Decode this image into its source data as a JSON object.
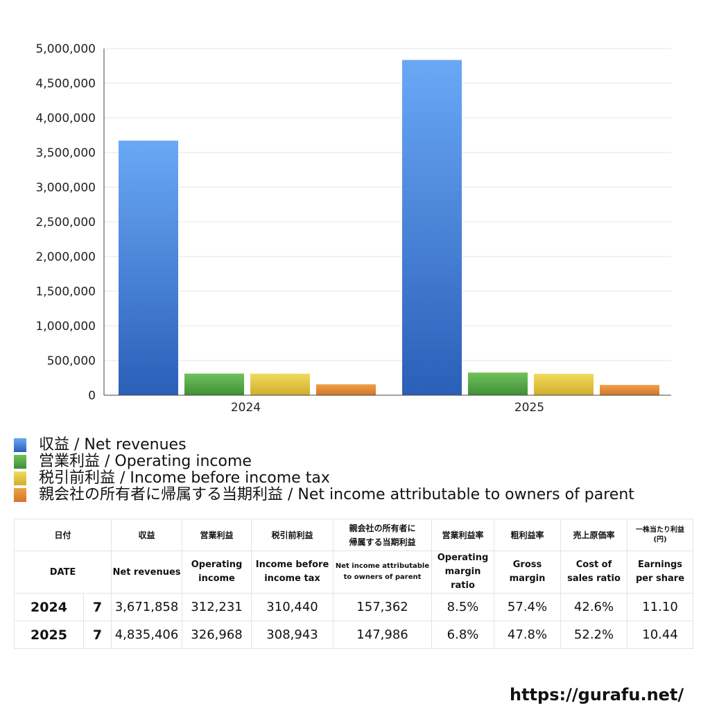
{
  "chart_data": {
    "type": "bar",
    "categories": [
      "2024",
      "2025"
    ],
    "series": [
      {
        "name": "収益 / Net revenues",
        "values": [
          3671858,
          4835406
        ]
      },
      {
        "name": "営業利益 / Operating income",
        "values": [
          312231,
          326968
        ]
      },
      {
        "name": "税引前利益 / Income before income tax",
        "values": [
          310440,
          308943
        ]
      },
      {
        "name": "親会社の所有者に帰属する当期利益 / Net income attributable to owners of parent",
        "values": [
          157362,
          147986
        ]
      }
    ],
    "ylim": [
      0,
      5000000
    ],
    "yticks": [
      0,
      500000,
      1000000,
      1500000,
      2000000,
      2500000,
      3000000,
      3500000,
      4000000,
      4500000,
      5000000
    ],
    "ytick_labels": [
      "0",
      "500,000",
      "1,000,000",
      "1,500,000",
      "2,000,000",
      "2,500,000",
      "3,000,000",
      "3,500,000",
      "4,000,000",
      "4,500,000",
      "5,000,000"
    ],
    "grid": true,
    "legend_position": "bottom-left",
    "title": "",
    "xlabel": "",
    "ylabel": ""
  },
  "colors": {
    "series": [
      {
        "light": "#6aa8f6",
        "dark": "#2b5fb8"
      },
      {
        "light": "#72c15d",
        "dark": "#3f8f37"
      },
      {
        "light": "#f0db5c",
        "dark": "#d0ae2c"
      },
      {
        "light": "#f0a048",
        "dark": "#d4752a"
      }
    ],
    "grid": "#e6e6e6",
    "axis": "#444444"
  },
  "legend": {
    "items": [
      "収益 / Net revenues",
      "営業利益 / Operating income",
      "税引前利益 / Income before income tax",
      "親会社の所有者に帰属する当期利益 / Net income attributable to owners of parent"
    ]
  },
  "table": {
    "header_jp": {
      "date": "日付",
      "revenue": "収益",
      "operating": "営業利益",
      "pretax": "税引前利益",
      "net_line1": "親会社の所有者に",
      "net_line2": "帰属する当期利益",
      "op_margin": "営業利益率",
      "gross_margin": "粗利益率",
      "cost_ratio": "売上原価率",
      "eps_line1": "一株当たり利益",
      "eps_line2": "(円)"
    },
    "header_en": {
      "date": "DATE",
      "revenue": "Net revenues",
      "operating_line1": "Operating",
      "operating_line2": "income",
      "pretax_line1": "Income before",
      "pretax_line2": "income tax",
      "net_line1": "Net income attributable",
      "net_line2": "to owners of parent",
      "op_margin_line1": "Operating",
      "op_margin_line2": "margin",
      "op_margin_line3": "ratio",
      "gross_line1": "Gross",
      "gross_line2": "margin",
      "cost_line1": "Cost of",
      "cost_line2": "sales ratio",
      "eps_line1": "Earnings",
      "eps_line2": "per share"
    },
    "rows": [
      {
        "year": "2024",
        "month": "7",
        "revenue": "3,671,858",
        "operating": "312,231",
        "pretax": "310,440",
        "net": "157,362",
        "op_margin": "8.5%",
        "gross_margin": "57.4%",
        "cost_ratio": "42.6%",
        "eps": "11.10"
      },
      {
        "year": "2025",
        "month": "7",
        "revenue": "4,835,406",
        "operating": "326,968",
        "pretax": "308,943",
        "net": "147,986",
        "op_margin": "6.8%",
        "gross_margin": "47.8%",
        "cost_ratio": "52.2%",
        "eps": "10.44"
      }
    ]
  },
  "footer": {
    "url": "https://gurafu.net/"
  }
}
